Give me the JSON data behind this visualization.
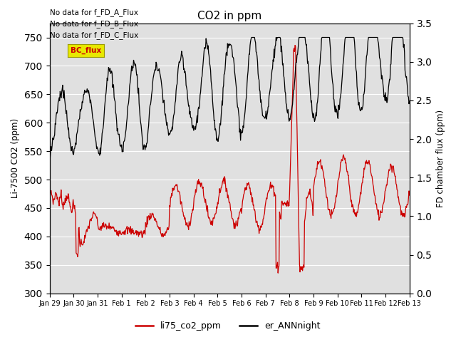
{
  "title": "CO2 in ppm",
  "ylabel_left": "Li-7500 CO2 (ppm)",
  "ylabel_right": "FD chamber flux (ppm)",
  "xlim_start": 0,
  "xlim_end": 360,
  "ylim_left": [
    300,
    775
  ],
  "ylim_right": [
    0.0,
    3.5
  ],
  "yticks_left": [
    300,
    350,
    400,
    450,
    500,
    550,
    600,
    650,
    700,
    750
  ],
  "yticks_right": [
    0.0,
    0.5,
    1.0,
    1.5,
    2.0,
    2.5,
    3.0,
    3.5
  ],
  "xtick_labels": [
    "Jan 29",
    "Jan 30",
    "Jan 31",
    "Feb 1",
    "Feb 2",
    "Feb 3",
    "Feb 4",
    "Feb 5",
    "Feb 6",
    "Feb 7",
    "Feb 8",
    "Feb 9",
    "Feb 10",
    "Feb 11",
    "Feb 12",
    "Feb 13"
  ],
  "xtick_positions": [
    0,
    24,
    48,
    72,
    96,
    120,
    144,
    168,
    192,
    216,
    240,
    264,
    288,
    312,
    336,
    360
  ],
  "legend_labels": [
    "li75_co2_ppm",
    "er_ANNnight"
  ],
  "legend_colors": [
    "#cc0000",
    "#000000"
  ],
  "line_red_color": "#cc0000",
  "line_black_color": "#000000",
  "annotation_lines": [
    "No data for f_FD_A_Flux",
    "No data for f_FD_B_Flux",
    "No data for f_FD_C_Flux"
  ],
  "bc_flux_label": "BC_flux",
  "bc_flux_color": "#e8e800",
  "background_color": "#ffffff",
  "plot_bg_color": "#e0e0e0",
  "grid_color": "#ffffff",
  "figsize": [
    6.4,
    4.8
  ],
  "dpi": 100
}
